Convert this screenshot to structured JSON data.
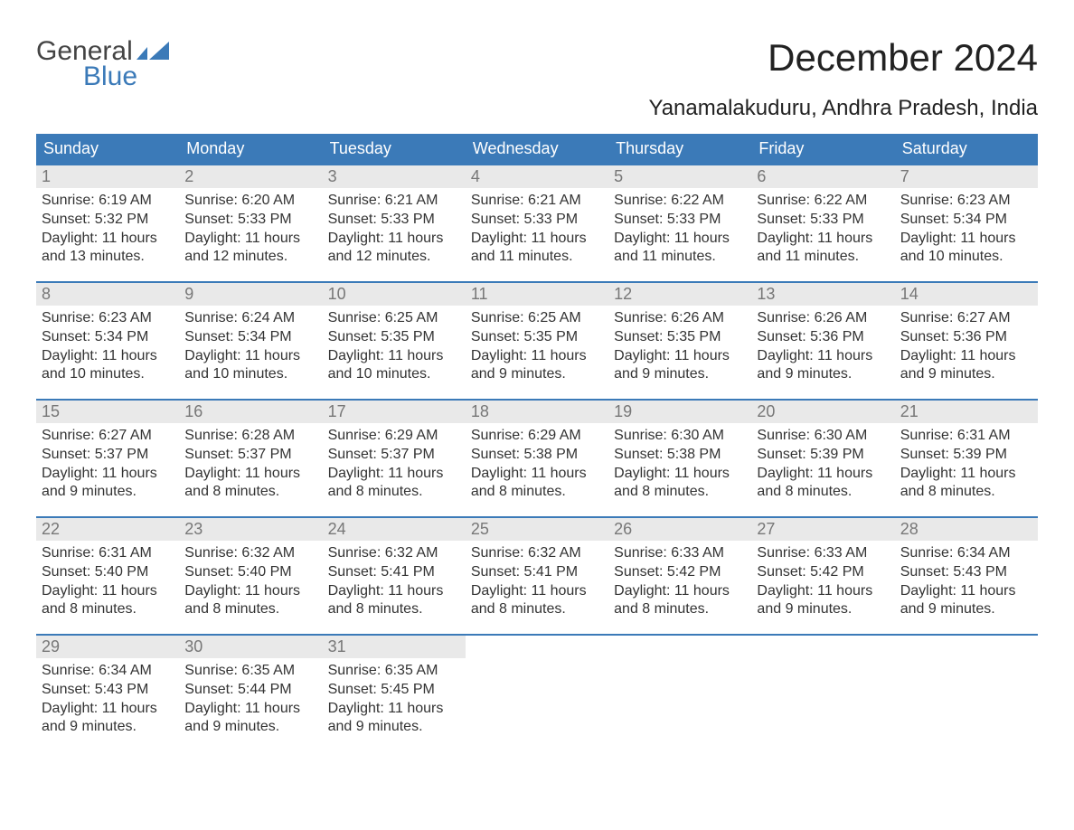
{
  "brand": {
    "line1": "General",
    "line2": "Blue",
    "accent": "#3b7ab8"
  },
  "title": "December 2024",
  "location": "Yanamalakuduru, Andhra Pradesh, India",
  "colors": {
    "header_bg": "#3b7ab8",
    "header_text": "#ffffff",
    "daynum_bg": "#e9e9e9",
    "daynum_text": "#777777",
    "body_text": "#333333",
    "row_divider": "#3b7ab8",
    "background": "#ffffff"
  },
  "typography": {
    "title_fontsize": 42,
    "subtitle_fontsize": 24,
    "dayname_fontsize": 18,
    "daynum_fontsize": 18,
    "cell_fontsize": 16
  },
  "daynames": [
    "Sunday",
    "Monday",
    "Tuesday",
    "Wednesday",
    "Thursday",
    "Friday",
    "Saturday"
  ],
  "labels": {
    "sunrise": "Sunrise:",
    "sunset": "Sunset:",
    "daylight": "Daylight:"
  },
  "weeks": [
    [
      {
        "n": "1",
        "sr": "6:19 AM",
        "ss": "5:32 PM",
        "dl": "11 hours and 13 minutes."
      },
      {
        "n": "2",
        "sr": "6:20 AM",
        "ss": "5:33 PM",
        "dl": "11 hours and 12 minutes."
      },
      {
        "n": "3",
        "sr": "6:21 AM",
        "ss": "5:33 PM",
        "dl": "11 hours and 12 minutes."
      },
      {
        "n": "4",
        "sr": "6:21 AM",
        "ss": "5:33 PM",
        "dl": "11 hours and 11 minutes."
      },
      {
        "n": "5",
        "sr": "6:22 AM",
        "ss": "5:33 PM",
        "dl": "11 hours and 11 minutes."
      },
      {
        "n": "6",
        "sr": "6:22 AM",
        "ss": "5:33 PM",
        "dl": "11 hours and 11 minutes."
      },
      {
        "n": "7",
        "sr": "6:23 AM",
        "ss": "5:34 PM",
        "dl": "11 hours and 10 minutes."
      }
    ],
    [
      {
        "n": "8",
        "sr": "6:23 AM",
        "ss": "5:34 PM",
        "dl": "11 hours and 10 minutes."
      },
      {
        "n": "9",
        "sr": "6:24 AM",
        "ss": "5:34 PM",
        "dl": "11 hours and 10 minutes."
      },
      {
        "n": "10",
        "sr": "6:25 AM",
        "ss": "5:35 PM",
        "dl": "11 hours and 10 minutes."
      },
      {
        "n": "11",
        "sr": "6:25 AM",
        "ss": "5:35 PM",
        "dl": "11 hours and 9 minutes."
      },
      {
        "n": "12",
        "sr": "6:26 AM",
        "ss": "5:35 PM",
        "dl": "11 hours and 9 minutes."
      },
      {
        "n": "13",
        "sr": "6:26 AM",
        "ss": "5:36 PM",
        "dl": "11 hours and 9 minutes."
      },
      {
        "n": "14",
        "sr": "6:27 AM",
        "ss": "5:36 PM",
        "dl": "11 hours and 9 minutes."
      }
    ],
    [
      {
        "n": "15",
        "sr": "6:27 AM",
        "ss": "5:37 PM",
        "dl": "11 hours and 9 minutes."
      },
      {
        "n": "16",
        "sr": "6:28 AM",
        "ss": "5:37 PM",
        "dl": "11 hours and 8 minutes."
      },
      {
        "n": "17",
        "sr": "6:29 AM",
        "ss": "5:37 PM",
        "dl": "11 hours and 8 minutes."
      },
      {
        "n": "18",
        "sr": "6:29 AM",
        "ss": "5:38 PM",
        "dl": "11 hours and 8 minutes."
      },
      {
        "n": "19",
        "sr": "6:30 AM",
        "ss": "5:38 PM",
        "dl": "11 hours and 8 minutes."
      },
      {
        "n": "20",
        "sr": "6:30 AM",
        "ss": "5:39 PM",
        "dl": "11 hours and 8 minutes."
      },
      {
        "n": "21",
        "sr": "6:31 AM",
        "ss": "5:39 PM",
        "dl": "11 hours and 8 minutes."
      }
    ],
    [
      {
        "n": "22",
        "sr": "6:31 AM",
        "ss": "5:40 PM",
        "dl": "11 hours and 8 minutes."
      },
      {
        "n": "23",
        "sr": "6:32 AM",
        "ss": "5:40 PM",
        "dl": "11 hours and 8 minutes."
      },
      {
        "n": "24",
        "sr": "6:32 AM",
        "ss": "5:41 PM",
        "dl": "11 hours and 8 minutes."
      },
      {
        "n": "25",
        "sr": "6:32 AM",
        "ss": "5:41 PM",
        "dl": "11 hours and 8 minutes."
      },
      {
        "n": "26",
        "sr": "6:33 AM",
        "ss": "5:42 PM",
        "dl": "11 hours and 8 minutes."
      },
      {
        "n": "27",
        "sr": "6:33 AM",
        "ss": "5:42 PM",
        "dl": "11 hours and 9 minutes."
      },
      {
        "n": "28",
        "sr": "6:34 AM",
        "ss": "5:43 PM",
        "dl": "11 hours and 9 minutes."
      }
    ],
    [
      {
        "n": "29",
        "sr": "6:34 AM",
        "ss": "5:43 PM",
        "dl": "11 hours and 9 minutes."
      },
      {
        "n": "30",
        "sr": "6:35 AM",
        "ss": "5:44 PM",
        "dl": "11 hours and 9 minutes."
      },
      {
        "n": "31",
        "sr": "6:35 AM",
        "ss": "5:45 PM",
        "dl": "11 hours and 9 minutes."
      },
      null,
      null,
      null,
      null
    ]
  ]
}
